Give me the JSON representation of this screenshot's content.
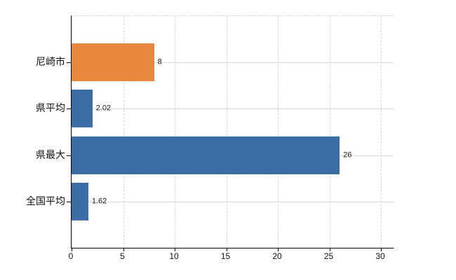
{
  "chart_data": {
    "type": "bar",
    "orientation": "horizontal",
    "title": "",
    "xlabel": "",
    "ylabel": "",
    "categories": [
      "尼崎市",
      "県平均",
      "県最大",
      "全国平均"
    ],
    "values": [
      8,
      2.02,
      26,
      1.62
    ],
    "value_labels": [
      "8",
      "2.02",
      "26",
      "1.62"
    ],
    "bar_colors": [
      "#e8863c",
      "#3c6da7",
      "#3c6da7",
      "#3c6da7"
    ],
    "x_ticks": [
      0,
      5,
      10,
      15,
      20,
      25,
      30
    ],
    "xlim": [
      0,
      31.2
    ],
    "grid": true,
    "legend": "none",
    "colors": {
      "accent_orange": "#e8863c",
      "accent_blue": "#3c6da7",
      "gridline": "#d2d9d2",
      "axis": "#000000",
      "text": "#111111"
    }
  }
}
